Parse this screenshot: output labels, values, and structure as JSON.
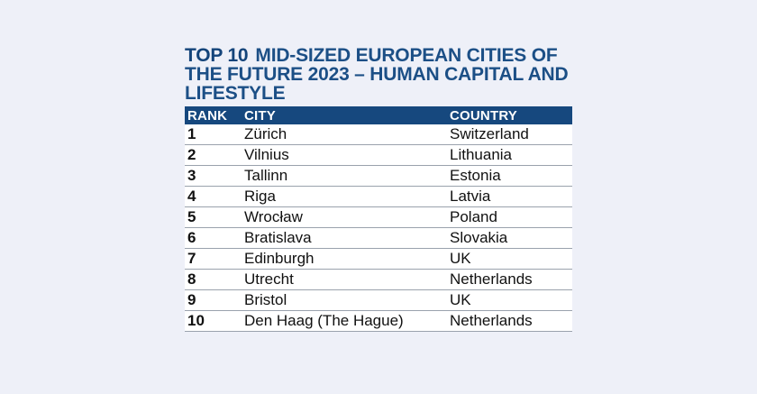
{
  "title": {
    "bold": "TOP 10",
    "rest": "MID-SIZED EUROPEAN CITIES OF THE FUTURE 2023 – HUMAN CAPITAL AND LIFESTYLE"
  },
  "table": {
    "headers": {
      "rank": "RANK",
      "city": "CITY",
      "country": "COUNTRY"
    },
    "rows": [
      {
        "rank": "1",
        "city": "Zürich",
        "country": "Switzerland"
      },
      {
        "rank": "2",
        "city": "Vilnius",
        "country": "Lithuania"
      },
      {
        "rank": "3",
        "city": "Tallinn",
        "country": "Estonia"
      },
      {
        "rank": "4",
        "city": "Riga",
        "country": "Latvia"
      },
      {
        "rank": "5",
        "city": "Wrocław",
        "country": "Poland"
      },
      {
        "rank": "6",
        "city": "Bratislava",
        "country": "Slovakia"
      },
      {
        "rank": "7",
        "city": "Edinburgh",
        "country": "UK"
      },
      {
        "rank": "8",
        "city": "Utrecht",
        "country": "Netherlands"
      },
      {
        "rank": "9",
        "city": "Bristol",
        "country": "UK"
      },
      {
        "rank": "10",
        "city": "Den Haag (The Hague)",
        "country": "Netherlands"
      }
    ]
  },
  "colors": {
    "header_bg": "#16487e",
    "title_text": "#1c4f86",
    "page_bg": "#eef0f8"
  }
}
